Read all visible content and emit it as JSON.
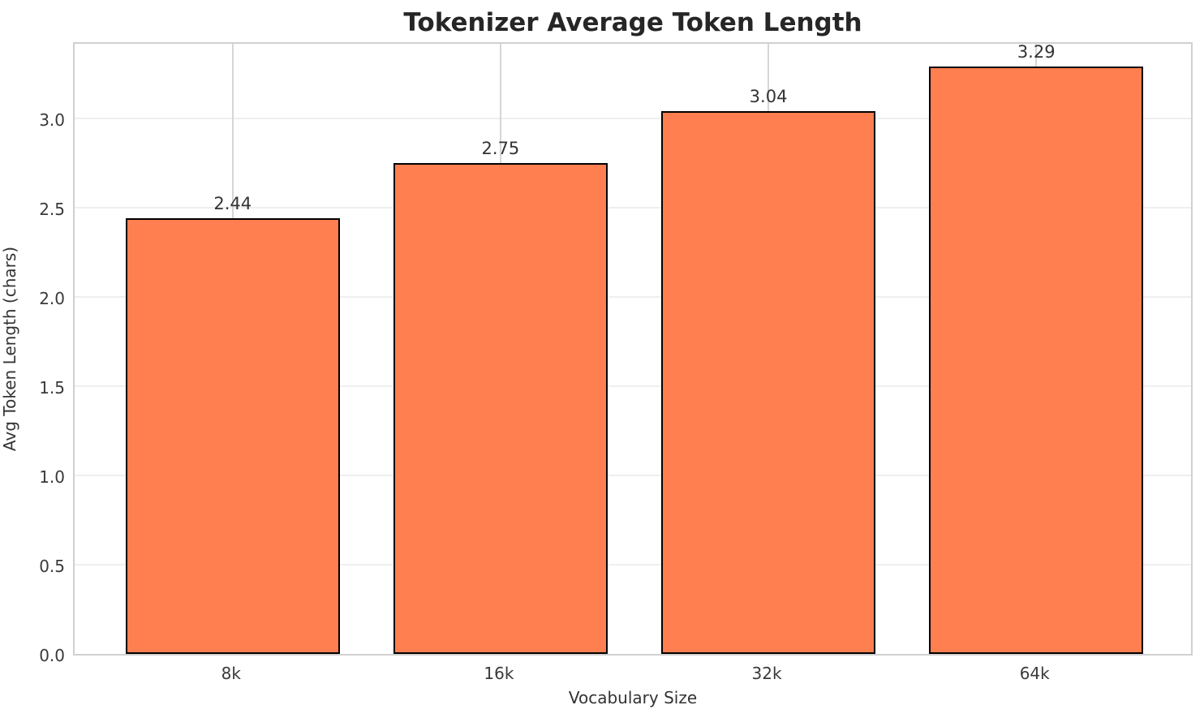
{
  "chart_data": {
    "type": "bar",
    "title": "Tokenizer Average Token Length",
    "xlabel": "Vocabulary Size",
    "ylabel": "Avg Token Length (chars)",
    "categories": [
      "8k",
      "16k",
      "32k",
      "64k"
    ],
    "values": [
      2.44,
      2.75,
      3.04,
      3.29
    ],
    "value_labels": [
      "2.44",
      "2.75",
      "3.04",
      "3.29"
    ],
    "yticks": [
      0.0,
      0.5,
      1.0,
      1.5,
      2.0,
      2.5,
      3.0
    ],
    "ytick_labels": [
      "0.0",
      "0.5",
      "1.0",
      "1.5",
      "2.0",
      "2.5",
      "3.0"
    ],
    "ylim": [
      0,
      3.436
    ],
    "grid": true,
    "legend_position": "none",
    "colors": {
      "bar_fill": "#FF7F50",
      "bar_edge": "#000000",
      "spine": "#d0d0d0",
      "hgrid": "#efefef",
      "vgrid": "#d6d6d6",
      "title_text": "#262626",
      "tick_text": "#3a3a3a",
      "label_text": "#333333"
    }
  }
}
